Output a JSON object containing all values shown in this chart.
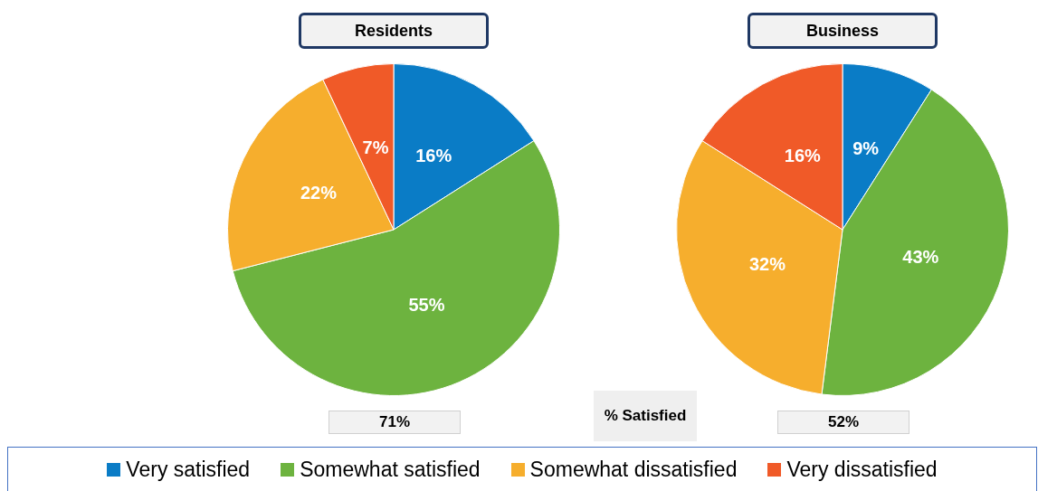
{
  "chart_data": [
    {
      "type": "pie",
      "title": "Residents",
      "categories": [
        "Very satisfied",
        "Somewhat satisfied",
        "Somewhat dissatisfied",
        "Very dissatisfied"
      ],
      "values": [
        16,
        55,
        22,
        7
      ],
      "value_labels": [
        "16%",
        "55%",
        "22%",
        "7%"
      ],
      "colors": [
        "#0a7cc6",
        "#6db33f",
        "#f6ae2d",
        "#f05a28"
      ],
      "annotations": [
        "71%",
        "% Satisfied"
      ],
      "legend": "bottom"
    },
    {
      "type": "pie",
      "title": "Business",
      "categories": [
        null,
        null,
        null,
        null
      ],
      "values": [
        9,
        43,
        32,
        16
      ],
      "value_labels": [
        "9%",
        "43%",
        "32%",
        "16%"
      ],
      "colors": [
        "#0a7cc6",
        "#6db33f",
        "#f6ae2d",
        "#f05a28"
      ],
      "annotations": [
        "52%"
      ]
    }
  ]
}
